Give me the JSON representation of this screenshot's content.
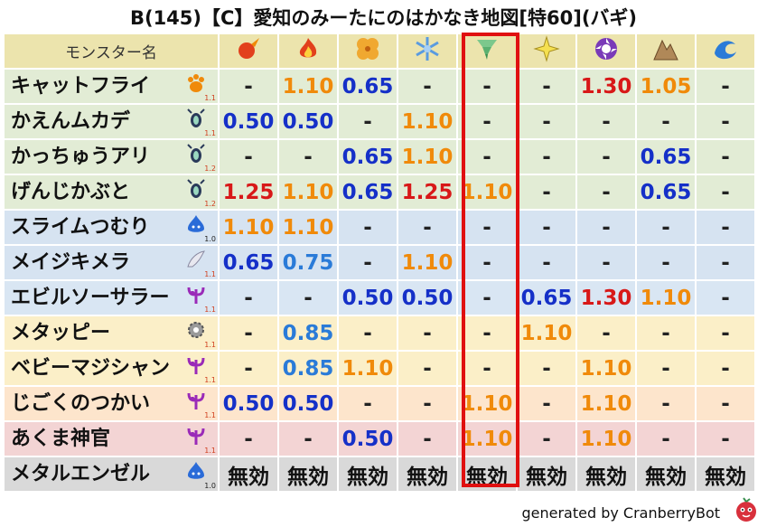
{
  "title": "B(145)【C】愛知のみーたにのはかなき地図[特60](バギ)",
  "header": {
    "name_col": "モンスター名",
    "elements": [
      "mera-icon",
      "gira-icon",
      "io-icon",
      "hyado-icon",
      "bagi-icon",
      "dein-icon",
      "dorumaa-icon",
      "jibaria-icon",
      "water-icon"
    ]
  },
  "rows": [
    {
      "name": "キャットフライ",
      "level": "1.1",
      "family": "beast",
      "band": "g",
      "values": [
        "-",
        "1.10",
        "0.65",
        "-",
        "-",
        "-",
        "1.30",
        "1.05",
        "-"
      ],
      "colors": [
        "dash",
        "orange",
        "blue",
        "dash",
        "dash",
        "dash",
        "red",
        "orange",
        "dash"
      ]
    },
    {
      "name": "かえんムカデ",
      "level": "1.1",
      "family": "insect",
      "band": "g",
      "values": [
        "0.50",
        "0.50",
        "-",
        "1.10",
        "-",
        "-",
        "-",
        "-",
        "-"
      ],
      "colors": [
        "blue",
        "blue",
        "dash",
        "orange",
        "dash",
        "dash",
        "dash",
        "dash",
        "dash"
      ]
    },
    {
      "name": "かっちゅうアリ",
      "level": "1.2",
      "family": "insect",
      "band": "g",
      "values": [
        "-",
        "-",
        "0.65",
        "1.10",
        "-",
        "-",
        "-",
        "0.65",
        "-"
      ],
      "colors": [
        "dash",
        "dash",
        "blue",
        "orange",
        "dash",
        "dash",
        "dash",
        "blue",
        "dash"
      ]
    },
    {
      "name": "げんじかぶと",
      "level": "1.2",
      "family": "insect",
      "band": "g",
      "values": [
        "1.25",
        "1.10",
        "0.65",
        "1.25",
        "1.10",
        "-",
        "-",
        "0.65",
        "-"
      ],
      "colors": [
        "red",
        "orange",
        "blue",
        "red",
        "orange",
        "dash",
        "dash",
        "blue",
        "dash"
      ]
    },
    {
      "name": "スライムつむり",
      "level": "1.0",
      "family": "slime",
      "band": "b",
      "values": [
        "1.10",
        "1.10",
        "-",
        "-",
        "-",
        "-",
        "-",
        "-",
        "-"
      ],
      "colors": [
        "orange",
        "orange",
        "dash",
        "dash",
        "dash",
        "dash",
        "dash",
        "dash",
        "dash"
      ]
    },
    {
      "name": "メイジキメラ",
      "level": "1.1",
      "family": "bird",
      "band": "b",
      "values": [
        "0.65",
        "0.75",
        "-",
        "1.10",
        "-",
        "-",
        "-",
        "-",
        "-"
      ],
      "colors": [
        "blue",
        "bluel",
        "dash",
        "orange",
        "dash",
        "dash",
        "dash",
        "dash",
        "dash"
      ]
    },
    {
      "name": "エビルソーサラー",
      "level": "1.1",
      "family": "demon",
      "band": "p",
      "values": [
        "-",
        "-",
        "0.50",
        "0.50",
        "-",
        "0.65",
        "1.30",
        "1.10",
        "-"
      ],
      "colors": [
        "dash",
        "dash",
        "blue",
        "blue",
        "dash",
        "blue",
        "red",
        "orange",
        "dash"
      ]
    },
    {
      "name": "メタッピー",
      "level": "1.1",
      "family": "machine",
      "band": "y",
      "values": [
        "-",
        "0.85",
        "-",
        "-",
        "-",
        "1.10",
        "-",
        "-",
        "-"
      ],
      "colors": [
        "dash",
        "bluel",
        "dash",
        "dash",
        "dash",
        "orange",
        "dash",
        "dash",
        "dash"
      ]
    },
    {
      "name": "ベビーマジシャン",
      "level": "1.1",
      "family": "demon",
      "band": "y",
      "values": [
        "-",
        "0.85",
        "1.10",
        "-",
        "-",
        "-",
        "1.10",
        "-",
        "-"
      ],
      "colors": [
        "dash",
        "bluel",
        "orange",
        "dash",
        "dash",
        "dash",
        "orange",
        "dash",
        "dash"
      ]
    },
    {
      "name": "じごくのつかい",
      "level": "1.1",
      "family": "demon",
      "band": "o",
      "values": [
        "0.50",
        "0.50",
        "-",
        "-",
        "1.10",
        "-",
        "1.10",
        "-",
        "-"
      ],
      "colors": [
        "blue",
        "blue",
        "dash",
        "dash",
        "orange",
        "dash",
        "orange",
        "dash",
        "dash"
      ]
    },
    {
      "name": "あくま神官",
      "level": "1.1",
      "family": "demon",
      "band": "r",
      "values": [
        "-",
        "-",
        "0.50",
        "-",
        "1.10",
        "-",
        "1.10",
        "-",
        "-"
      ],
      "colors": [
        "dash",
        "dash",
        "blue",
        "dash",
        "orange",
        "dash",
        "orange",
        "dash",
        "dash"
      ]
    },
    {
      "name": "メタルエンゼル",
      "level": "1.0",
      "family": "slime",
      "band": "gr",
      "values": [
        "無効",
        "無効",
        "無効",
        "無効",
        "無効",
        "無効",
        "無効",
        "無効",
        "無効"
      ],
      "colors": [
        "black",
        "black",
        "black",
        "black",
        "black",
        "black",
        "black",
        "black",
        "black"
      ]
    }
  ],
  "footer": "generated by CranberryBot",
  "highlighted_column": 4
}
